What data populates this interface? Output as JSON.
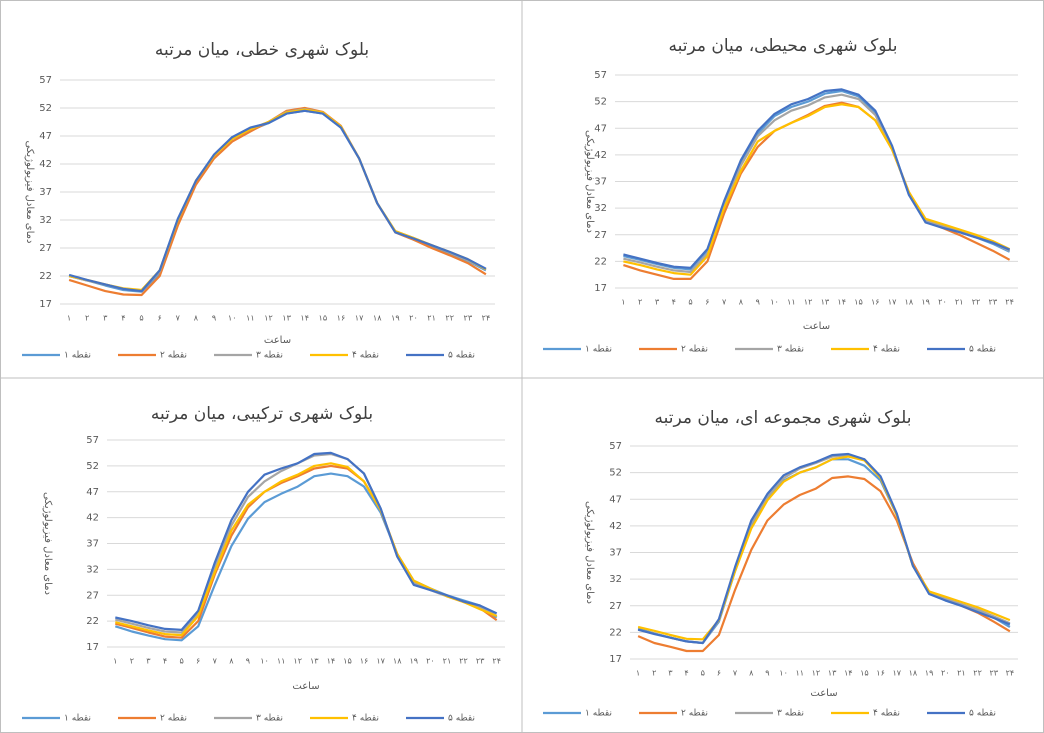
{
  "chart_data": [
    {
      "type": "line",
      "title": "بلوک شهری خطی، میان مرتبه",
      "x_label": "ساعت",
      "y_label": "دمای معادل فیزیولوژیکی",
      "categories": [
        "۱",
        "۲",
        "۳",
        "۴",
        "۵",
        "۶",
        "۷",
        "۸",
        "۹",
        "۱۰",
        "۱۱",
        "۱۲",
        "۱۳",
        "۱۴",
        "۱۵",
        "۱۶",
        "۱۷",
        "۱۸",
        "۱۹",
        "۲۰",
        "۲۱",
        "۲۲",
        "۲۳",
        "۲۴"
      ],
      "ylim": [
        17,
        57
      ],
      "yticks": [
        17,
        22,
        27,
        32,
        37,
        42,
        47,
        52,
        57
      ],
      "grid": true,
      "series": [
        {
          "name": "نقطه ۱",
          "color": "#5b9bd5",
          "values": [
            22,
            21.2,
            20.3,
            19.5,
            19.2,
            22.5,
            31.5,
            38.8,
            43.5,
            46.5,
            48,
            49.3,
            51,
            51.5,
            51,
            48.5,
            43,
            35,
            29.8,
            28.5,
            27.2,
            26,
            24.7,
            23
          ]
        },
        {
          "name": "نقطه ۲",
          "color": "#ed7d31",
          "values": [
            21.3,
            20.3,
            19.3,
            18.7,
            18.6,
            22,
            31,
            38.3,
            43,
            46,
            47.8,
            49.5,
            51.5,
            52,
            51.3,
            48.8,
            43,
            35,
            29.8,
            28.5,
            27,
            25.7,
            24.3,
            22.3
          ]
        },
        {
          "name": "نقطه ۳",
          "color": "#a5a5a5",
          "values": [
            22,
            21.2,
            20.5,
            19.7,
            19.3,
            22.8,
            32,
            39,
            43.5,
            46.5,
            48.2,
            49.5,
            51.3,
            51.8,
            51.2,
            48.7,
            43,
            35,
            30,
            28.8,
            27.5,
            26.2,
            24.8,
            23.2
          ]
        },
        {
          "name": "نقطه ۴",
          "color": "#ffc000",
          "values": [
            22,
            21.3,
            20.5,
            19.8,
            19.5,
            23,
            32,
            39,
            43.5,
            46.5,
            48.2,
            49.5,
            51.2,
            51.7,
            51.2,
            48.7,
            43,
            35,
            30,
            28.8,
            27.5,
            26.3,
            25,
            23.2
          ]
        },
        {
          "name": "نقطه ۵",
          "color": "#4472c4",
          "values": [
            22.2,
            21.3,
            20.5,
            19.7,
            19.3,
            23,
            32.2,
            39,
            43.7,
            46.8,
            48.5,
            49.3,
            51,
            51.5,
            51,
            48.5,
            43,
            35,
            29.8,
            28.7,
            27.5,
            26.3,
            25,
            23.3
          ]
        }
      ]
    },
    {
      "type": "line",
      "title": "بلوک شهری محیطی، میان مرتبه",
      "x_label": "ساعت",
      "y_label": "دمای معادل فیزیولوژیکی",
      "categories": [
        "۱",
        "۲",
        "۳",
        "۴",
        "۵",
        "۶",
        "۷",
        "۸",
        "۹",
        "۱۰",
        "۱۱",
        "۱۲",
        "۱۳",
        "۱۴",
        "۱۵",
        "۱۶",
        "۱۷",
        "۱۸",
        "۱۹",
        "۲۰",
        "۲۱",
        "۲۲",
        "۲۳",
        "۲۴"
      ],
      "ylim": [
        17,
        57
      ],
      "yticks": [
        17,
        22,
        27,
        32,
        37,
        42,
        47,
        52,
        57
      ],
      "grid": true,
      "series": [
        {
          "name": "نقطه ۱",
          "color": "#5b9bd5",
          "values": [
            23,
            22.3,
            21.5,
            20.8,
            20.5,
            24,
            33,
            40.5,
            46,
            49.3,
            51,
            52,
            53.5,
            54,
            53,
            50,
            43.5,
            34.5,
            29.5,
            28.5,
            27.5,
            26.5,
            25.3,
            23.8
          ]
        },
        {
          "name": "نقطه ۲",
          "color": "#ed7d31",
          "values": [
            21.3,
            20.3,
            19.5,
            18.7,
            18.7,
            22,
            31,
            38.5,
            43.5,
            46.5,
            48,
            49.5,
            51.2,
            51.8,
            51,
            48.5,
            43,
            35,
            29.5,
            28.3,
            27,
            25.5,
            24,
            22.3
          ]
        },
        {
          "name": "نقطه ۳",
          "color": "#a5a5a5",
          "values": [
            22.5,
            21.8,
            21,
            20.3,
            20,
            23.5,
            32.5,
            40,
            45.5,
            48.5,
            50.3,
            51.3,
            52.8,
            53.3,
            52.5,
            49.5,
            43.3,
            34.7,
            29.7,
            28.7,
            27.7,
            26.7,
            25.5,
            24
          ]
        },
        {
          "name": "نقطه ۴",
          "color": "#ffc000",
          "values": [
            22,
            21.3,
            20.5,
            19.8,
            19.5,
            23,
            32,
            39,
            44.5,
            46.5,
            48,
            49.3,
            51,
            51.5,
            51,
            48.5,
            43,
            35,
            30,
            29,
            28,
            27,
            25.8,
            24.3
          ]
        },
        {
          "name": "نقطه ۵",
          "color": "#4472c4",
          "values": [
            23.3,
            22.5,
            21.7,
            21,
            20.8,
            24.3,
            33.3,
            41,
            46.5,
            49.7,
            51.5,
            52.5,
            54,
            54.3,
            53.3,
            50.3,
            43.7,
            34.5,
            29.3,
            28.3,
            27.5,
            26.5,
            25.5,
            24.2
          ]
        }
      ]
    },
    {
      "type": "line",
      "title": "بلوک شهری ترکیبی، میان مرتبه",
      "x_label": "ساعت",
      "y_label": "دمای معادل فیزیولوژیکی",
      "categories": [
        "۱",
        "۲",
        "۳",
        "۴",
        "۵",
        "۶",
        "۷",
        "۸",
        "۹",
        "۱۰",
        "۱۱",
        "۱۲",
        "۱۳",
        "۱۴",
        "۱۵",
        "۱۶",
        "۱۷",
        "۱۸",
        "۱۹",
        "۲۰",
        "۲۱",
        "۲۲",
        "۲۳",
        "۲۴"
      ],
      "ylim": [
        17,
        57
      ],
      "yticks": [
        17,
        22,
        27,
        32,
        37,
        42,
        47,
        52,
        57
      ],
      "grid": true,
      "series": [
        {
          "name": "نقطه ۱",
          "color": "#5b9bd5",
          "values": [
            21,
            20,
            19.2,
            18.5,
            18.3,
            21,
            29,
            36.5,
            41.8,
            45,
            46.6,
            48,
            50,
            50.5,
            50,
            48,
            43,
            35,
            29.8,
            28.3,
            27,
            26,
            25,
            22.7
          ]
        },
        {
          "name": "نقطه ۲",
          "color": "#ed7d31",
          "values": [
            21.5,
            20.7,
            19.8,
            19,
            18.8,
            22,
            31,
            38.5,
            44,
            47,
            48.7,
            50,
            51.5,
            52,
            51.5,
            49,
            43.5,
            35,
            29.7,
            28.2,
            26.8,
            25.7,
            24.5,
            22.2
          ]
        },
        {
          "name": "نقطه ۳",
          "color": "#a5a5a5",
          "values": [
            22.3,
            21.5,
            20.7,
            20,
            19.8,
            23.5,
            32.5,
            40.5,
            46,
            49,
            51,
            52.5,
            54,
            54.3,
            53.3,
            50.5,
            43.8,
            34.5,
            29.3,
            28,
            26.8,
            25.8,
            24.7,
            23
          ]
        },
        {
          "name": "نقطه ۴",
          "color": "#ffc000",
          "values": [
            21.8,
            21,
            20.2,
            19.5,
            19.3,
            23,
            31.5,
            39.5,
            44.5,
            47,
            49,
            50.3,
            52,
            52.5,
            51.8,
            49,
            43.5,
            35,
            29.8,
            28.3,
            26.8,
            25.7,
            24.3,
            23
          ]
        },
        {
          "name": "نقطه ۵",
          "color": "#4472c4",
          "values": [
            22.7,
            22,
            21.2,
            20.5,
            20.3,
            24,
            33.3,
            41.5,
            47,
            50.3,
            51.5,
            52.5,
            54.3,
            54.5,
            53.3,
            50.5,
            43.8,
            34.5,
            29,
            28,
            27,
            25.8,
            25,
            23.5
          ]
        }
      ]
    },
    {
      "type": "line",
      "title": "بلوک شهری مجموعه ای، میان مرتبه",
      "x_label": "ساعت",
      "y_label": "دمای معادل فیزیولوژیکی",
      "categories": [
        "۱",
        "۲",
        "۳",
        "۴",
        "۵",
        "۶",
        "۷",
        "۸",
        "۹",
        "۱۰",
        "۱۱",
        "۱۲",
        "۱۳",
        "۱۴",
        "۱۵",
        "۱۶",
        "۱۷",
        "۱۸",
        "۱۹",
        "۲۰",
        "۲۱",
        "۲۲",
        "۲۳",
        "۲۴"
      ],
      "ylim": [
        17,
        57
      ],
      "yticks": [
        17,
        22,
        27,
        32,
        37,
        42,
        47,
        52,
        57
      ],
      "grid": true,
      "series": [
        {
          "name": "نقطه ۱",
          "color": "#5b9bd5",
          "values": [
            22.7,
            21.8,
            21,
            20.3,
            20,
            24,
            33.5,
            42,
            47,
            50.5,
            52,
            53,
            54.5,
            54.5,
            53.3,
            50.5,
            44,
            34.5,
            29.3,
            28,
            27,
            26,
            24.8,
            23
          ]
        },
        {
          "name": "نقطه ۲",
          "color": "#ed7d31",
          "values": [
            21.3,
            20,
            19.3,
            18.5,
            18.5,
            21.5,
            30,
            37.5,
            43,
            46,
            47.8,
            49,
            51,
            51.3,
            50.8,
            48.5,
            43,
            35,
            29.5,
            28.5,
            27,
            25.7,
            24,
            22.2
          ]
        },
        {
          "name": "نقطه ۳",
          "color": "#a5a5a5",
          "values": [
            22.5,
            21.8,
            21,
            20.3,
            20,
            24.3,
            34,
            42.5,
            47.5,
            51,
            52.8,
            53.8,
            55,
            55.3,
            54.5,
            51,
            44,
            34.5,
            29.5,
            28.3,
            27.3,
            26.3,
            25,
            23.7
          ]
        },
        {
          "name": "نقطه ۴",
          "color": "#ffc000",
          "values": [
            23,
            22.3,
            21.5,
            20.8,
            20.7,
            24.3,
            33.5,
            41.5,
            46.8,
            50.3,
            52,
            53,
            54.5,
            55,
            54.3,
            51,
            44,
            34.5,
            29.7,
            28.7,
            27.7,
            26.7,
            25.5,
            24.3
          ]
        },
        {
          "name": "نقطه ۵",
          "color": "#4472c4",
          "values": [
            22.5,
            21.7,
            21,
            20.3,
            20,
            24.5,
            34.3,
            43,
            48,
            51.5,
            53,
            54,
            55.3,
            55.5,
            54.5,
            51.3,
            44.3,
            34.5,
            29.2,
            28,
            27,
            25.8,
            24.7,
            23.5
          ]
        }
      ]
    }
  ]
}
